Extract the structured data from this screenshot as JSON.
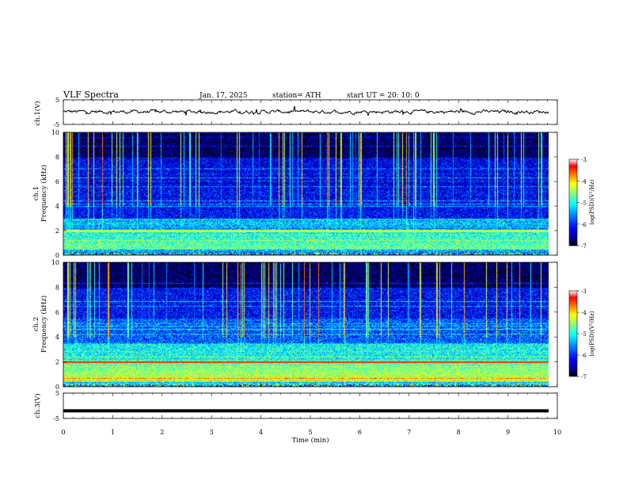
{
  "header": {
    "title": "VLF  Spectra",
    "date": "Jan. 17, 2025",
    "station": "station= ATH",
    "start": "start  UT  =   20: 10: 0"
  },
  "chart_data": [
    {
      "type": "line",
      "name": "ch1-waveform",
      "ylabel": "ch.1(V)",
      "ylim": [
        -5,
        5
      ],
      "yticks": [
        "5",
        "-5"
      ],
      "xlim": [
        0,
        10
      ]
    },
    {
      "type": "heatmap",
      "name": "ch1-spectrogram",
      "ylabel": "ch.1\nFrequency  (kHz)",
      "ylim": [
        0,
        10
      ],
      "yticks": [
        "0",
        "2",
        "4",
        "6",
        "8",
        "10"
      ],
      "xlim": [
        0,
        10
      ],
      "colorbar": {
        "label": "log(PSD)(V²/Hz)",
        "ticks": [
          "-3",
          "-4",
          "-5",
          "-6",
          "-7"
        ],
        "range": [
          -7,
          -3
        ]
      }
    },
    {
      "type": "heatmap",
      "name": "ch2-spectrogram",
      "ylabel": "ch.2\nFrequency  (kHz)",
      "ylim": [
        0,
        10
      ],
      "yticks": [
        "0",
        "2",
        "4",
        "6",
        "8",
        "10"
      ],
      "xlim": [
        0,
        10
      ],
      "colorbar": {
        "label": "log(PSD)(V²/Hz)",
        "ticks": [
          "-3",
          "-4",
          "-5",
          "-6",
          "-7"
        ],
        "range": [
          -7,
          -3
        ]
      }
    },
    {
      "type": "line",
      "name": "ch3-waveform",
      "ylabel": "ch.3(V)",
      "ylim": [
        -5,
        5
      ],
      "yticks": [
        "5",
        "-5"
      ],
      "xlim": [
        0,
        10
      ],
      "level": -2
    }
  ],
  "xaxis": {
    "label": "Time  (min)",
    "ticks": [
      "0",
      "1",
      "2",
      "3",
      "4",
      "5",
      "6",
      "7",
      "8",
      "9",
      "10"
    ],
    "range": [
      0,
      10
    ]
  },
  "colors": {
    "jet": [
      "#000000",
      "#00008f",
      "#0000ff",
      "#0080ff",
      "#00ffff",
      "#80ff80",
      "#ffff00",
      "#ff8000",
      "#ff0000",
      "#ffffff"
    ]
  }
}
